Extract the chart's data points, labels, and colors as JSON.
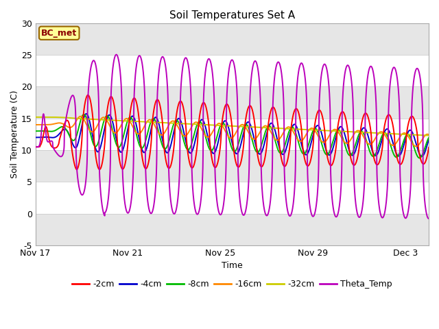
{
  "title": "Soil Temperatures Set A",
  "xlabel": "Time",
  "ylabel": "Soil Temperature (C)",
  "ylim": [
    -5,
    30
  ],
  "xlim_days": [
    0,
    17
  ],
  "tick_labels": [
    "Nov 17",
    "Nov 21",
    "Nov 25",
    "Nov 29",
    "Dec 3"
  ],
  "tick_positions": [
    0,
    4,
    8,
    12,
    16
  ],
  "annotation": "BC_met",
  "legend_labels": [
    "-2cm",
    "-4cm",
    "-8cm",
    "-16cm",
    "-32cm",
    "Theta_Temp"
  ],
  "colors": {
    "-2cm": "#FF0000",
    "-4cm": "#0000CC",
    "-8cm": "#00BB00",
    "-16cm": "#FF8800",
    "-32cm": "#CCCC00",
    "Theta_Temp": "#BB00BB"
  },
  "background_color": "#F0F0F0",
  "band_colors": [
    "#FFFFFF",
    "#E8E8E8"
  ]
}
